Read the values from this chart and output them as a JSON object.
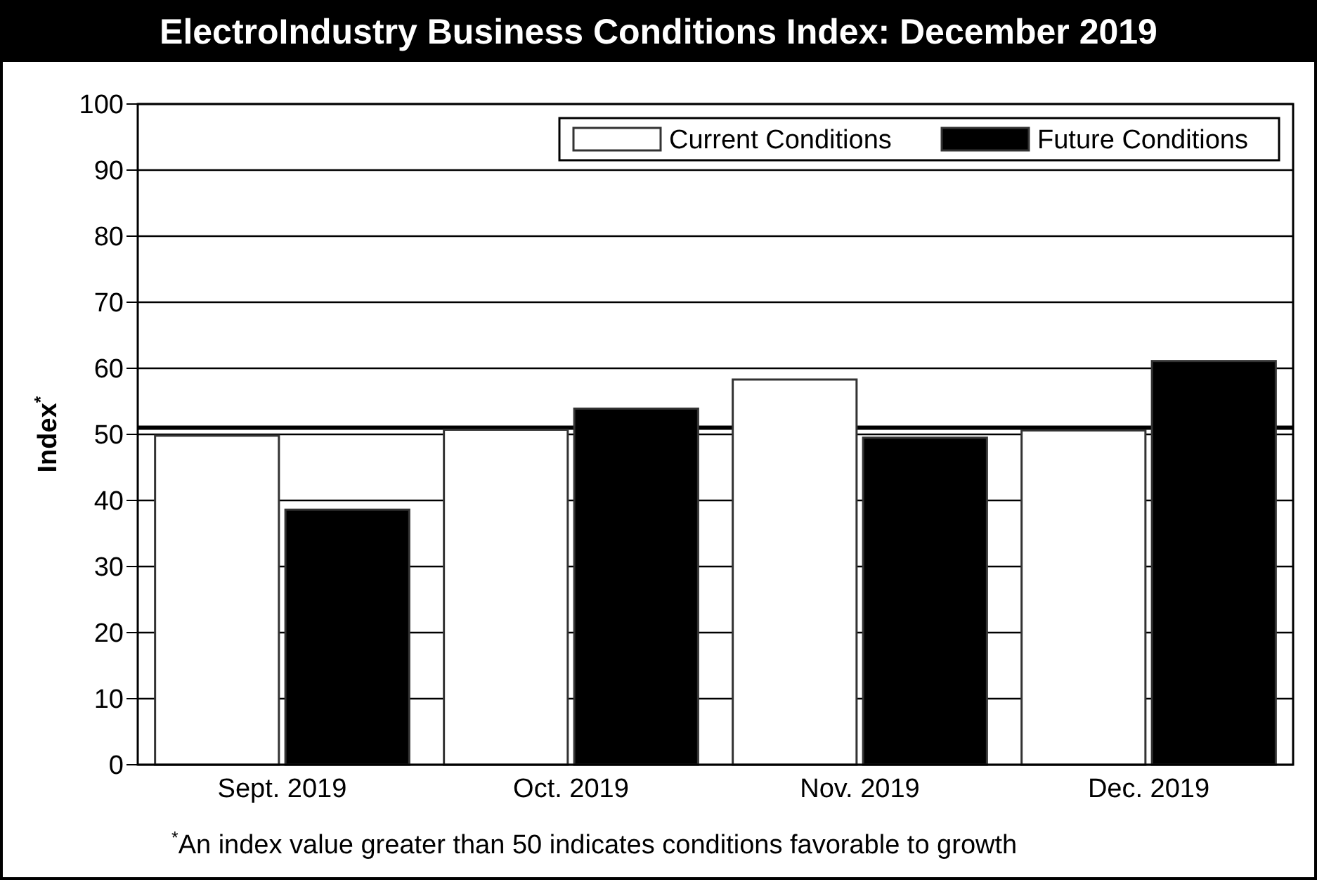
{
  "chart_data": {
    "type": "bar",
    "title": "ElectroIndustry Business Conditions Index: December 2019",
    "ylabel": "Index$^{*}$",
    "categories": [
      "Sept. 2019",
      "Oct. 2019",
      "Nov. 2019",
      "Dec. 2019"
    ],
    "series": [
      {
        "name": "Current Conditions",
        "color": "#ffffff",
        "values": [
          49.8,
          50.7,
          58.3,
          50.6
        ]
      },
      {
        "name": "Future Conditions",
        "color": "#000000",
        "values": [
          38.6,
          53.9,
          49.5,
          61.1
        ]
      }
    ],
    "ylim": [
      0,
      100
    ],
    "yticks": [
      0,
      10,
      20,
      30,
      40,
      50,
      60,
      70,
      80,
      90,
      100
    ],
    "grid": "y",
    "legend": "top right",
    "ref_lines": [
      {
        "axis": "y",
        "value": 51,
        "color": "#000000"
      }
    ],
    "annotations": [
      "$^{*}$An index value greater than 50 indicates conditions favorable to growth"
    ]
  }
}
